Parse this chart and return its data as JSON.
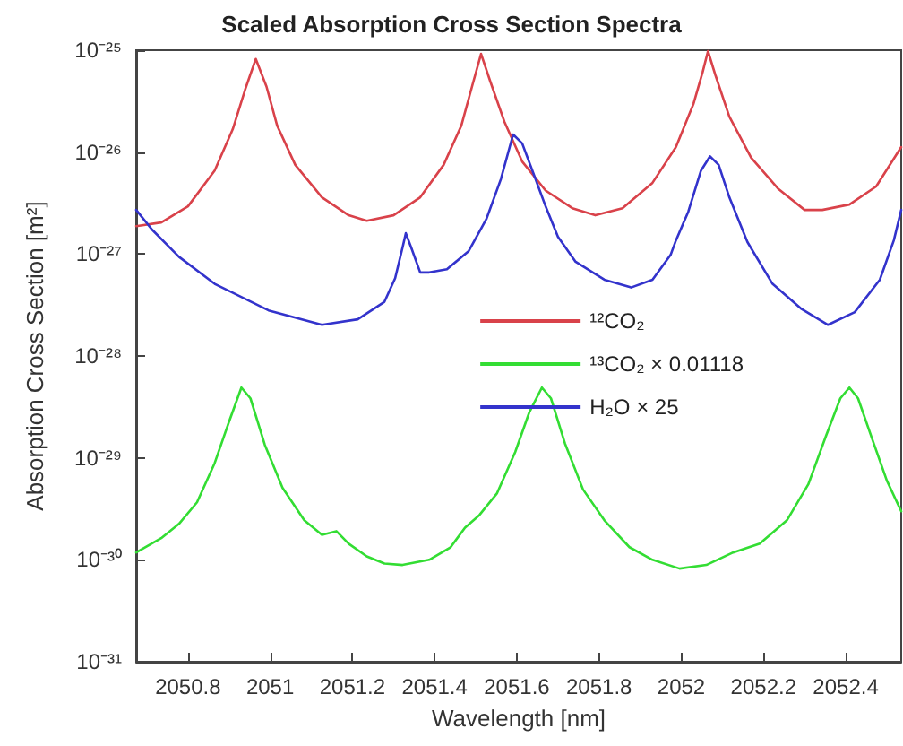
{
  "chart_data": {
    "type": "line",
    "title": "Scaled Absorption Cross Section Spectra",
    "xlabel": "Wavelength [nm]",
    "ylabel": "Absorption Cross Section [m²]",
    "log": "y",
    "grid": false,
    "legend": "right",
    "marker": "none",
    "line_style": "solid",
    "xlim": [
      2050.674,
      2052.535
    ],
    "xticks": [
      2050.8,
      2051,
      2051.2,
      2051.4,
      2051.6,
      2051.8,
      2052,
      2052.2,
      2052.4
    ],
    "ylim": [
      1e-31,
      1e-25
    ],
    "yticks": [
      {
        "value": 1e-31,
        "label": "10⁻³¹"
      },
      {
        "value": 1e-30,
        "label": "10⁻³⁰"
      },
      {
        "value": 1e-29,
        "label": "10⁻²⁹"
      },
      {
        "value": 1e-28,
        "label": "10⁻²⁸"
      },
      {
        "value": 1e-27,
        "label": "10⁻²⁷"
      },
      {
        "value": 1e-26,
        "label": "10⁻²⁶"
      },
      {
        "value": 1e-25,
        "label": "10⁻²⁵"
      }
    ],
    "series": [
      {
        "name": "¹²CO₂",
        "color": "#d9424a",
        "x": [
          2050.674,
          2050.735,
          2050.8,
          2050.865,
          2050.909,
          2050.939,
          2050.965,
          2050.991,
          2051.017,
          2051.061,
          2051.126,
          2051.191,
          2051.235,
          2051.3,
          2051.365,
          2051.422,
          2051.465,
          2051.491,
          2051.513,
          2051.535,
          2051.57,
          2051.613,
          2051.67,
          2051.735,
          2051.791,
          2051.857,
          2051.93,
          2051.987,
          2052.03,
          2052.052,
          2052.065,
          2052.083,
          2052.117,
          2052.17,
          2052.235,
          2052.3,
          2052.343,
          2052.409,
          2052.474,
          2052.535
        ],
        "values": [
          1.88e-27,
          2.04e-27,
          2.94e-27,
          6.6e-27,
          1.68e-26,
          4.1e-26,
          8.2e-26,
          4.4e-26,
          1.82e-26,
          7.5e-27,
          3.6e-27,
          2.4e-27,
          2.12e-27,
          2.4e-27,
          3.6e-27,
          7.5e-27,
          1.82e-26,
          4.4e-26,
          9.2e-26,
          5e-26,
          1.98e-26,
          8.1e-27,
          4.2e-27,
          2.82e-27,
          2.4e-27,
          2.82e-27,
          5e-27,
          1.12e-26,
          3e-26,
          6.1e-26,
          9.8e-26,
          5.7e-26,
          2.23e-26,
          8.8e-27,
          4.4e-27,
          2.71e-27,
          2.71e-27,
          3.06e-27,
          4.6e-27,
          1.12e-26
        ]
      },
      {
        "name": "¹³CO₂ × 0.01118",
        "color": "#33dd33",
        "x": [
          2050.674,
          2050.735,
          2050.778,
          2050.822,
          2050.865,
          2050.9,
          2050.93,
          2050.952,
          2050.987,
          2051.03,
          2051.083,
          2051.126,
          2051.161,
          2051.191,
          2051.235,
          2051.278,
          2051.322,
          2051.387,
          2051.439,
          2051.474,
          2051.509,
          2051.552,
          2051.596,
          2051.63,
          2051.661,
          2051.683,
          2051.717,
          2051.761,
          2051.813,
          2051.874,
          2051.93,
          2051.996,
          2052.061,
          2052.126,
          2052.191,
          2052.257,
          2052.309,
          2052.352,
          2052.387,
          2052.409,
          2052.43,
          2052.465,
          2052.5,
          2052.535
        ],
        "values": [
          1.18e-30,
          1.63e-30,
          2.25e-30,
          3.66e-30,
          8.9e-30,
          2.27e-29,
          4.9e-29,
          3.84e-29,
          1.34e-29,
          5.1e-30,
          2.44e-30,
          1.76e-30,
          1.91e-30,
          1.44e-30,
          1.08e-30,
          9.2e-31,
          8.9e-31,
          1e-30,
          1.33e-30,
          2.07e-30,
          2.75e-30,
          4.5e-30,
          1.14e-29,
          2.78e-29,
          4.9e-29,
          3.84e-29,
          1.39e-29,
          4.9e-30,
          2.44e-30,
          1.33e-30,
          1e-30,
          8.2e-31,
          8.9e-31,
          1.18e-30,
          1.44e-30,
          2.44e-30,
          5.5e-30,
          1.64e-29,
          3.84e-29,
          4.9e-29,
          3.84e-29,
          1.51e-29,
          6e-30,
          2.99e-30
        ]
      },
      {
        "name": "H₂O × 25",
        "color": "#3333cc",
        "x": [
          2050.674,
          2050.713,
          2050.778,
          2050.865,
          2050.996,
          2051.126,
          2051.213,
          2051.278,
          2051.304,
          2051.322,
          2051.33,
          2051.343,
          2051.365,
          2051.387,
          2051.43,
          2051.483,
          2051.526,
          2051.561,
          2051.591,
          2051.613,
          2051.639,
          2051.67,
          2051.7,
          2051.743,
          2051.813,
          2051.878,
          2051.93,
          2051.974,
          2051.987,
          2052.017,
          2052.048,
          2052.07,
          2052.091,
          2052.117,
          2052.161,
          2052.222,
          2052.291,
          2052.357,
          2052.422,
          2052.483,
          2052.517,
          2052.535
        ],
        "values": [
          2.71e-27,
          1.73e-27,
          9.4e-28,
          5.1e-28,
          2.8e-28,
          2.02e-28,
          2.29e-28,
          3.4e-28,
          5.8e-28,
          1.16e-27,
          1.6e-27,
          1.16e-27,
          6.6e-28,
          6.6e-28,
          7.1e-28,
          1.07e-27,
          2.21e-27,
          5.4e-27,
          1.49e-26,
          1.22e-26,
          6.4e-27,
          2.94e-27,
          1.48e-27,
          8.4e-28,
          5.6e-28,
          4.7e-28,
          5.6e-28,
          9.8e-28,
          1.36e-27,
          2.6e-27,
          6.6e-27,
          9.1e-27,
          7.5e-27,
          3.6e-27,
          1.31e-27,
          5.1e-28,
          2.92e-28,
          2.02e-28,
          2.69e-28,
          5.6e-28,
          1.36e-27,
          2.71e-27
        ]
      }
    ]
  }
}
